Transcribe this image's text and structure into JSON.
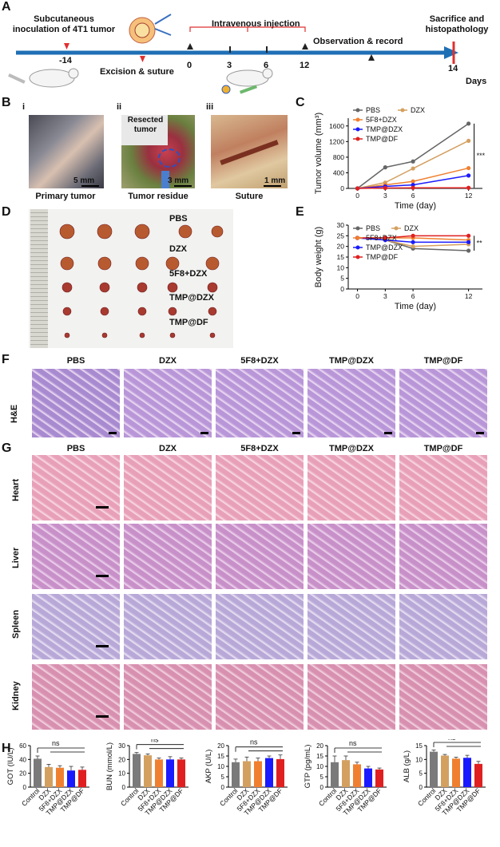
{
  "panels": {
    "A": {
      "letter": "A",
      "events": {
        "inoculation": "Subcutaneous\ninoculation of 4T1 tumor",
        "excision": "Excision & suture",
        "injection": "Intravenous injection",
        "observation": "Observation & record",
        "sacrifice": "Sacrifice and\nhistopathology",
        "unit": "Days"
      },
      "ticks": [
        "-14",
        "0",
        "3",
        "6",
        "12",
        "14"
      ],
      "colors": {
        "axis": "#1f6fb5",
        "marker": "#e03030"
      }
    },
    "B": {
      "letter": "B",
      "items": [
        {
          "roman": "i",
          "caption": "Primary tumor",
          "scale": "5 mm"
        },
        {
          "roman": "ii",
          "caption": "Tumor residue",
          "scale": "3 mm",
          "tag": "Resected\ntumor"
        },
        {
          "roman": "iii",
          "caption": "Suture",
          "scale": "1 mm"
        }
      ]
    },
    "C": {
      "letter": "C"
    },
    "D": {
      "letter": "D",
      "rows": [
        "PBS",
        "DZX",
        "5F8+DZX",
        "TMP@DZX",
        "TMP@DF"
      ]
    },
    "E": {
      "letter": "E"
    },
    "F": {
      "letter": "F",
      "columns": [
        "PBS",
        "DZX",
        "5F8+DZX",
        "TMP@DZX",
        "TMP@DF"
      ],
      "row_label": "H&E"
    },
    "G": {
      "letter": "G",
      "columns": [
        "PBS",
        "DZX",
        "5F8+DZX",
        "TMP@DZX",
        "TMP@DF"
      ],
      "rows": [
        "Heart",
        "Liver",
        "Spleen",
        "Kidney"
      ]
    },
    "H": {
      "letter": "H"
    }
  },
  "chart_data": [
    {
      "id": "C",
      "type": "line",
      "xlabel": "Time (day)",
      "ylabel": "Tumor volume (mm³)",
      "x": [
        0,
        3,
        6,
        12
      ],
      "ylim": [
        0,
        1800
      ],
      "yticks": [
        0,
        400,
        800,
        1200,
        1600
      ],
      "significance": "***",
      "legend": "top-left",
      "series": [
        {
          "name": "PBS",
          "color": "#666666",
          "values": [
            0,
            540,
            690,
            1660
          ]
        },
        {
          "name": "DZX",
          "color": "#d4a060",
          "values": [
            0,
            150,
            510,
            1220
          ]
        },
        {
          "name": "5F8+DZX",
          "color": "#f08030",
          "values": [
            0,
            90,
            180,
            520
          ]
        },
        {
          "name": "TMP@DZX",
          "color": "#1a1aff",
          "values": [
            0,
            50,
            90,
            330
          ]
        },
        {
          "name": "TMP@DF",
          "color": "#e02020",
          "values": [
            0,
            10,
            15,
            15
          ]
        }
      ]
    },
    {
      "id": "E",
      "type": "line",
      "xlabel": "Time (day)",
      "ylabel": "Body weight (g)",
      "x": [
        0,
        3,
        6,
        12
      ],
      "ylim": [
        0,
        30
      ],
      "yticks": [
        0,
        5,
        10,
        15,
        20,
        25,
        30
      ],
      "significance": "**",
      "legend": "bottom-left",
      "series": [
        {
          "name": "PBS",
          "color": "#666666",
          "values": [
            24,
            23,
            19,
            18
          ]
        },
        {
          "name": "DZX",
          "color": "#d4a060",
          "values": [
            24,
            23,
            20,
            21
          ]
        },
        {
          "name": "5F8+DZX",
          "color": "#f08030",
          "values": [
            24,
            24,
            24,
            23
          ]
        },
        {
          "name": "TMP@DZX",
          "color": "#1a1aff",
          "values": [
            24,
            23,
            22,
            22
          ]
        },
        {
          "name": "TMP@DF",
          "color": "#e02020",
          "values": [
            24,
            24,
            25,
            25
          ]
        }
      ]
    },
    {
      "id": "H1",
      "type": "bar",
      "ylabel": "GOT (IU/L)",
      "ylim": [
        0,
        60
      ],
      "yticks": [
        0,
        20,
        40,
        60
      ],
      "categories": [
        "Control",
        "DZX",
        "5F8+DZX",
        "TMP@DZX",
        "TMP@DF"
      ],
      "values": [
        41,
        29,
        28,
        24,
        25
      ],
      "errors": [
        4,
        4,
        3,
        6,
        4
      ],
      "significance": "ns"
    },
    {
      "id": "H2",
      "type": "bar",
      "ylabel": "BUN (mmol/L)",
      "ylim": [
        0,
        30
      ],
      "yticks": [
        0,
        10,
        20,
        30
      ],
      "categories": [
        "Control",
        "DZX",
        "5F8+DZX",
        "TMP@DZX",
        "TMP@DF"
      ],
      "values": [
        24,
        23,
        20,
        20,
        20
      ],
      "errors": [
        1,
        1,
        1,
        2,
        1
      ],
      "significance": "ns"
    },
    {
      "id": "H3",
      "type": "bar",
      "ylabel": "AKP (U/L)",
      "ylim": [
        0,
        20
      ],
      "yticks": [
        0,
        5,
        10,
        15,
        20
      ],
      "categories": [
        "Control",
        "DZX",
        "5F8+DZX",
        "TMP@DZX",
        "TMP@DF"
      ],
      "values": [
        12,
        12.5,
        12.5,
        14,
        13.5
      ],
      "errors": [
        1.5,
        2,
        1.5,
        1,
        2
      ],
      "significance": "ns"
    },
    {
      "id": "H4",
      "type": "bar",
      "ylabel": "GTP (pg/mL)",
      "ylim": [
        0,
        20
      ],
      "yticks": [
        0,
        5,
        10,
        15,
        20
      ],
      "categories": [
        "Control",
        "DZX",
        "5F8+DZX",
        "TMP@DZX",
        "TMP@DF"
      ],
      "values": [
        12,
        13,
        11,
        9,
        8.5
      ],
      "errors": [
        3,
        2,
        1,
        1,
        0.7
      ],
      "significance": "ns"
    },
    {
      "id": "H5",
      "type": "bar",
      "ylabel": "ALB (g/L)",
      "ylim": [
        0,
        15
      ],
      "yticks": [
        0,
        5,
        10,
        15
      ],
      "categories": [
        "Control",
        "DZX",
        "5F8+DZX",
        "TMP@DZX",
        "TMP@DF"
      ],
      "values": [
        12.8,
        11.4,
        10.3,
        10.6,
        8.4
      ],
      "errors": [
        0.6,
        0.4,
        0.5,
        0.9,
        0.9
      ],
      "significance": "ns"
    }
  ],
  "bar_colors": [
    "#7a7a7a",
    "#d4a060",
    "#f08030",
    "#1a1aff",
    "#e02020"
  ]
}
